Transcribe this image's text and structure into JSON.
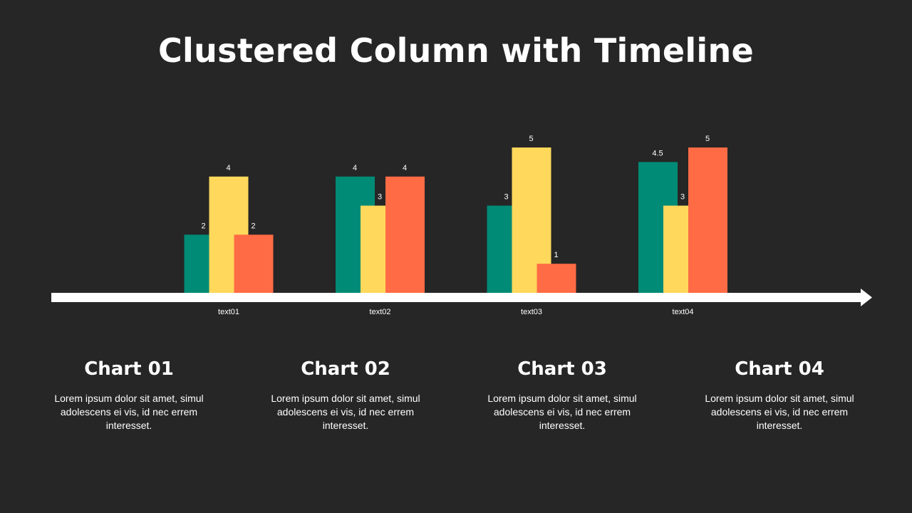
{
  "title": "Clustered Column with Timeline",
  "chart_data": {
    "type": "bar",
    "categories": [
      "text01",
      "text02",
      "text03",
      "text04"
    ],
    "series": [
      {
        "values": [
          2,
          4,
          3,
          4.5
        ],
        "color": "#008B76"
      },
      {
        "values": [
          4,
          3,
          5,
          3
        ],
        "color": "#FFD85C"
      },
      {
        "values": [
          2,
          4,
          1,
          5
        ],
        "color": "#FF6B45"
      }
    ],
    "data_labels": [
      [
        "2",
        "4",
        "3",
        "4.5"
      ],
      [
        "4",
        "3",
        "5",
        "3"
      ],
      [
        "2",
        "4",
        "1",
        "5"
      ]
    ],
    "ylim": [
      0,
      5
    ],
    "grid": false,
    "axis_color": "#FFFFFF",
    "axis_style": "arrow"
  },
  "cards": [
    {
      "title": "Chart 01",
      "body": "Lorem ipsum dolor sit amet, simul adolescens ei vis, id nec errem interesset."
    },
    {
      "title": "Chart 02",
      "body": "Lorem ipsum dolor sit amet, simul adolescens ei vis, id nec errem interesset."
    },
    {
      "title": "Chart 03",
      "body": "Lorem ipsum dolor sit amet, simul adolescens ei vis, id nec errem interesset."
    },
    {
      "title": "Chart 04",
      "body": "Lorem ipsum dolor sit amet, simul adolescens ei vis, id nec errem interesset."
    }
  ],
  "background": "#262626"
}
